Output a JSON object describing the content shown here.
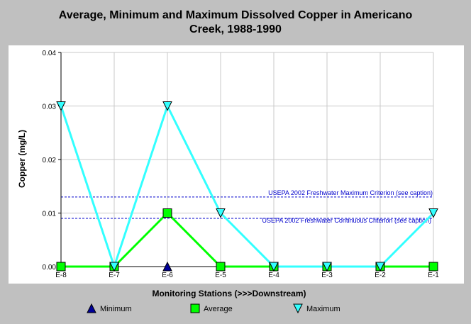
{
  "chart_data": {
    "type": "line",
    "title_lines": [
      "Average, Minimum and Maximum Dissolved Copper in Americano",
      "Creek, 1988-1990"
    ],
    "xlabel": "Monitoring Stations (>>>Downstream)",
    "ylabel": "Copper (mg/L)",
    "categories": [
      "E-8",
      "E-7",
      "E-6",
      "E-5",
      "E-4",
      "E-3",
      "E-2",
      "E-1"
    ],
    "ylim": [
      0,
      0.04
    ],
    "yticks": [
      "0.00",
      "0.01",
      "0.02",
      "0.03",
      "0.04"
    ],
    "grid": true,
    "legend_position": "bottom",
    "series": [
      {
        "name": "Minimum",
        "marker": "triangle-up",
        "color": "#000099",
        "values": [
          null,
          null,
          0.0,
          null,
          null,
          null,
          null,
          null
        ]
      },
      {
        "name": "Average",
        "marker": "square",
        "color": "#00ff00",
        "values": [
          0.0,
          0.0,
          0.01,
          0.0,
          0.0,
          0.0,
          0.0,
          0.0
        ]
      },
      {
        "name": "Maximum",
        "marker": "triangle-down",
        "color": "#33ffff",
        "values": [
          0.03,
          0.0,
          0.03,
          0.01,
          0.0,
          0.0,
          0.0,
          0.01
        ]
      }
    ],
    "annotations": [
      {
        "text": "USEPA 2002 Freshwater Maximum Criterion (see caption)",
        "y": 0.013,
        "color": "#0000cc"
      },
      {
        "text": "USEPA 2002 Freshwater Continuous Criterion (see caption)",
        "y": 0.009,
        "color": "#0000cc"
      }
    ]
  }
}
